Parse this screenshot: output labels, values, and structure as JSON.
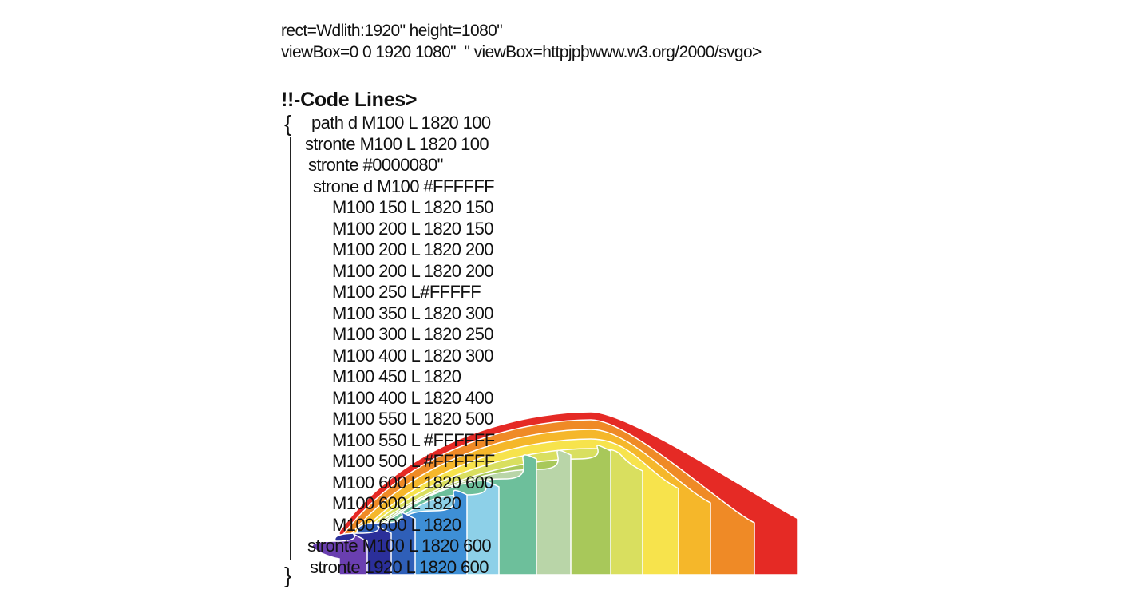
{
  "header": {
    "lines": [
      "rect=Wdlith:1920\" height=1080\"",
      "viewBox=0 0 1920 1080\"  \" viewBox=httpjpþwww.w3.org/2000/svgo>"
    ]
  },
  "code": {
    "title": "!!-Code Lines>",
    "open_brace": "{",
    "close_brace": "}",
    "lines": [
      "path d M100 L 1820 100",
      "stronte M100 L 1820 100",
      "stronte #0000080\"",
      "strone d M100 #FFFFFF",
      "M100 150 L 1820 150",
      "M100 200 L 1820 150",
      "M100 200 L 1820 200",
      "M100 200 L 1820 200",
      "M100 250 L#FFFFF",
      "M100 350 L 1820 300",
      "M100 300 L 1820 250",
      "M100 400 L 1820 300",
      "M100 450 L 1820",
      "M100 400 L 1820 400",
      "M100 550 L 1820 500",
      "M100 550 L #FFFFFF",
      "M100 500 L #FFFFFF",
      "M100 600 L 1820 600",
      "M100 600 L 1820",
      "M100 600 L 1820",
      "stronte M100 L 1820 600",
      "stronte 1920 L 1820 600"
    ]
  }
}
